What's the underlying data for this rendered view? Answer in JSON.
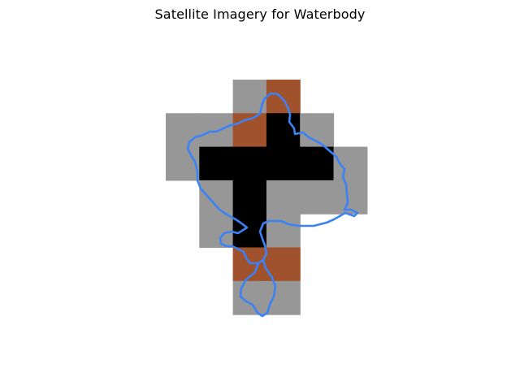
{
  "figure": {
    "title": "Satellite Imagery for Waterbody",
    "colors": {
      "land": "#979797",
      "water": "#000000",
      "soil": "#a0522d",
      "outline": "#3b82f6"
    },
    "grid": [
      [
        "empty",
        "empty",
        "land",
        "soil",
        "empty",
        "empty"
      ],
      [
        "land",
        "land",
        "soil",
        "water",
        "land",
        "empty"
      ],
      [
        "land",
        "water",
        "water",
        "water",
        "water",
        "land"
      ],
      [
        "empty",
        "land",
        "water",
        "land",
        "land",
        "land"
      ],
      [
        "empty",
        "land",
        "water",
        "land",
        "empty",
        "empty"
      ],
      [
        "empty",
        "empty",
        "soil",
        "soil",
        "empty",
        "empty"
      ],
      [
        "empty",
        "empty",
        "land",
        "land",
        "empty",
        "empty"
      ]
    ]
  }
}
